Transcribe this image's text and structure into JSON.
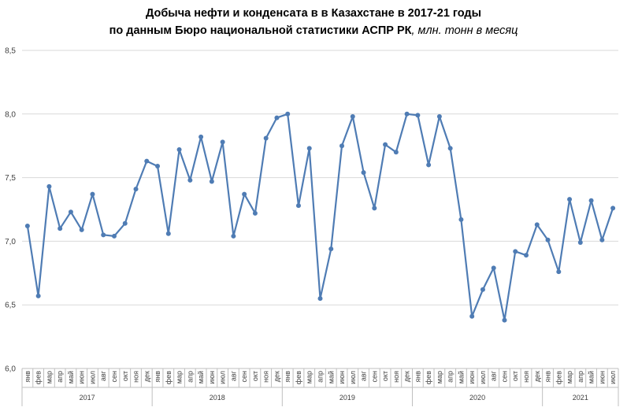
{
  "chart_data": {
    "type": "line",
    "title_line1": "Добыча  нефти и конденсата  в в Казахстане  в 2017-21 годы",
    "title_line2": "по данным  Бюро национальной  статистики  АСПР РК",
    "title_unit": ", млн. тонн в месяц",
    "ylim": [
      6.0,
      8.5
    ],
    "yticks": [
      "6,0",
      "6,5",
      "7,0",
      "7,5",
      "8,0",
      "8,5"
    ],
    "grid": true,
    "legend": "none",
    "colors": {
      "line": "#4f7cb4",
      "grid": "#d9d9d9",
      "axis": "#bfbfbf"
    },
    "month_labels": [
      "янв",
      "фев",
      "мар",
      "апр",
      "май",
      "июн",
      "июл",
      "авг",
      "сен",
      "окт",
      "ноя",
      "дек"
    ],
    "years": [
      "2017",
      "2018",
      "2019",
      "2020",
      "2021"
    ],
    "series": [
      {
        "values": [
          7.12,
          6.57,
          7.43,
          7.1,
          7.23,
          7.09,
          7.37,
          7.05,
          7.04,
          7.14,
          7.41,
          7.63,
          7.59,
          7.06,
          7.72,
          7.48,
          7.82,
          7.47,
          7.78,
          7.04,
          7.37,
          7.22,
          7.81,
          7.97,
          8.0,
          7.28,
          7.73,
          6.55,
          6.94,
          7.75,
          7.98,
          7.54,
          7.26,
          7.76,
          7.7,
          8.0,
          7.99,
          7.6,
          7.98,
          7.73,
          7.17,
          6.41,
          6.62,
          6.79,
          6.38,
          6.92,
          6.89,
          7.13,
          7.01,
          6.76,
          7.33,
          6.99,
          7.32,
          7.01,
          7.26
        ]
      }
    ]
  }
}
